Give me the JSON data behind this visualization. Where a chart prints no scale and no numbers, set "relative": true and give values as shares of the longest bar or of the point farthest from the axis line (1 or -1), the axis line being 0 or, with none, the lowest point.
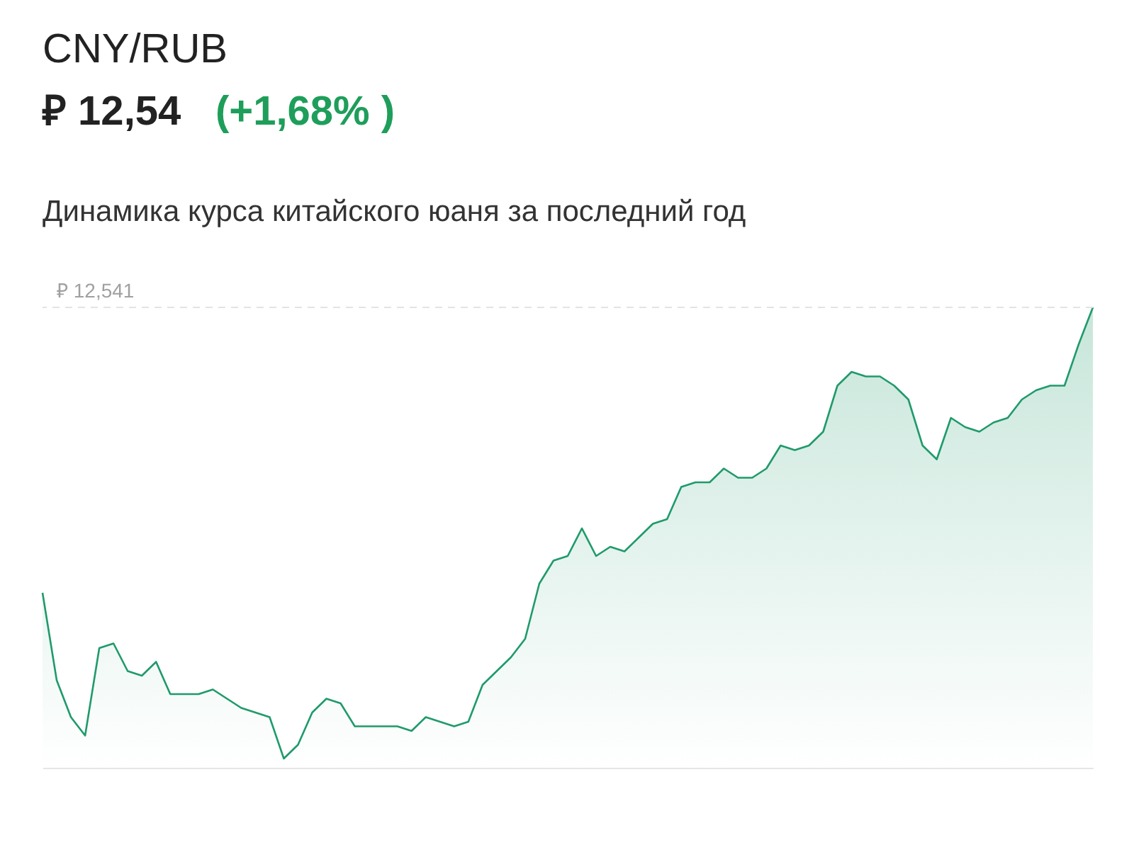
{
  "chart_data": {
    "type": "area",
    "title": "CNY/RUB",
    "subtitle": "₽ 12,54",
    "annotations": [
      "(+1,68% )",
      "Динамика курса китайского юаня за последний год"
    ],
    "relative": true,
    "tick_labels": false,
    "grid": false,
    "color": "#1f9a6b",
    "categories": [
      null,
      null,
      null,
      null,
      null,
      null,
      null,
      null,
      null,
      null,
      null,
      null,
      null,
      null,
      null,
      null,
      null,
      null,
      null,
      null,
      null,
      null,
      null,
      null,
      null,
      null,
      null,
      null,
      null,
      null,
      null,
      null,
      null,
      null,
      null,
      null,
      null,
      null,
      null,
      null,
      null,
      null,
      null,
      null,
      null,
      null,
      null,
      null,
      null,
      null,
      null,
      null,
      null,
      null,
      null,
      null,
      null,
      null,
      null,
      null,
      null,
      null,
      null,
      null,
      null,
      null,
      null,
      null,
      null,
      null,
      null,
      null,
      null,
      null,
      null
    ],
    "values": [
      0.38,
      0.19,
      0.11,
      0.07,
      0.26,
      0.27,
      0.21,
      0.2,
      0.23,
      0.16,
      0.16,
      0.16,
      0.17,
      0.15,
      0.13,
      0.12,
      0.11,
      0.02,
      0.05,
      0.12,
      0.15,
      0.14,
      0.09,
      0.09,
      0.09,
      0.09,
      0.08,
      0.11,
      0.1,
      0.09,
      0.1,
      0.18,
      0.21,
      0.24,
      0.28,
      0.4,
      0.45,
      0.46,
      0.52,
      0.46,
      0.48,
      0.47,
      0.5,
      0.53,
      0.54,
      0.61,
      0.62,
      0.62,
      0.65,
      0.63,
      0.63,
      0.65,
      0.7,
      0.69,
      0.7,
      0.73,
      0.83,
      0.86,
      0.85,
      0.85,
      0.83,
      0.8,
      0.7,
      0.67,
      0.76,
      0.74,
      0.73,
      0.75,
      0.76,
      0.8,
      0.82,
      0.83,
      0.83,
      0.92,
      1.0
    ],
    "ref_lines": [
      {
        "axis": "y",
        "value": 1,
        "label": "₽ 12,541",
        "line_style": "dashed",
        "color": "#e3e3e3"
      }
    ]
  }
}
